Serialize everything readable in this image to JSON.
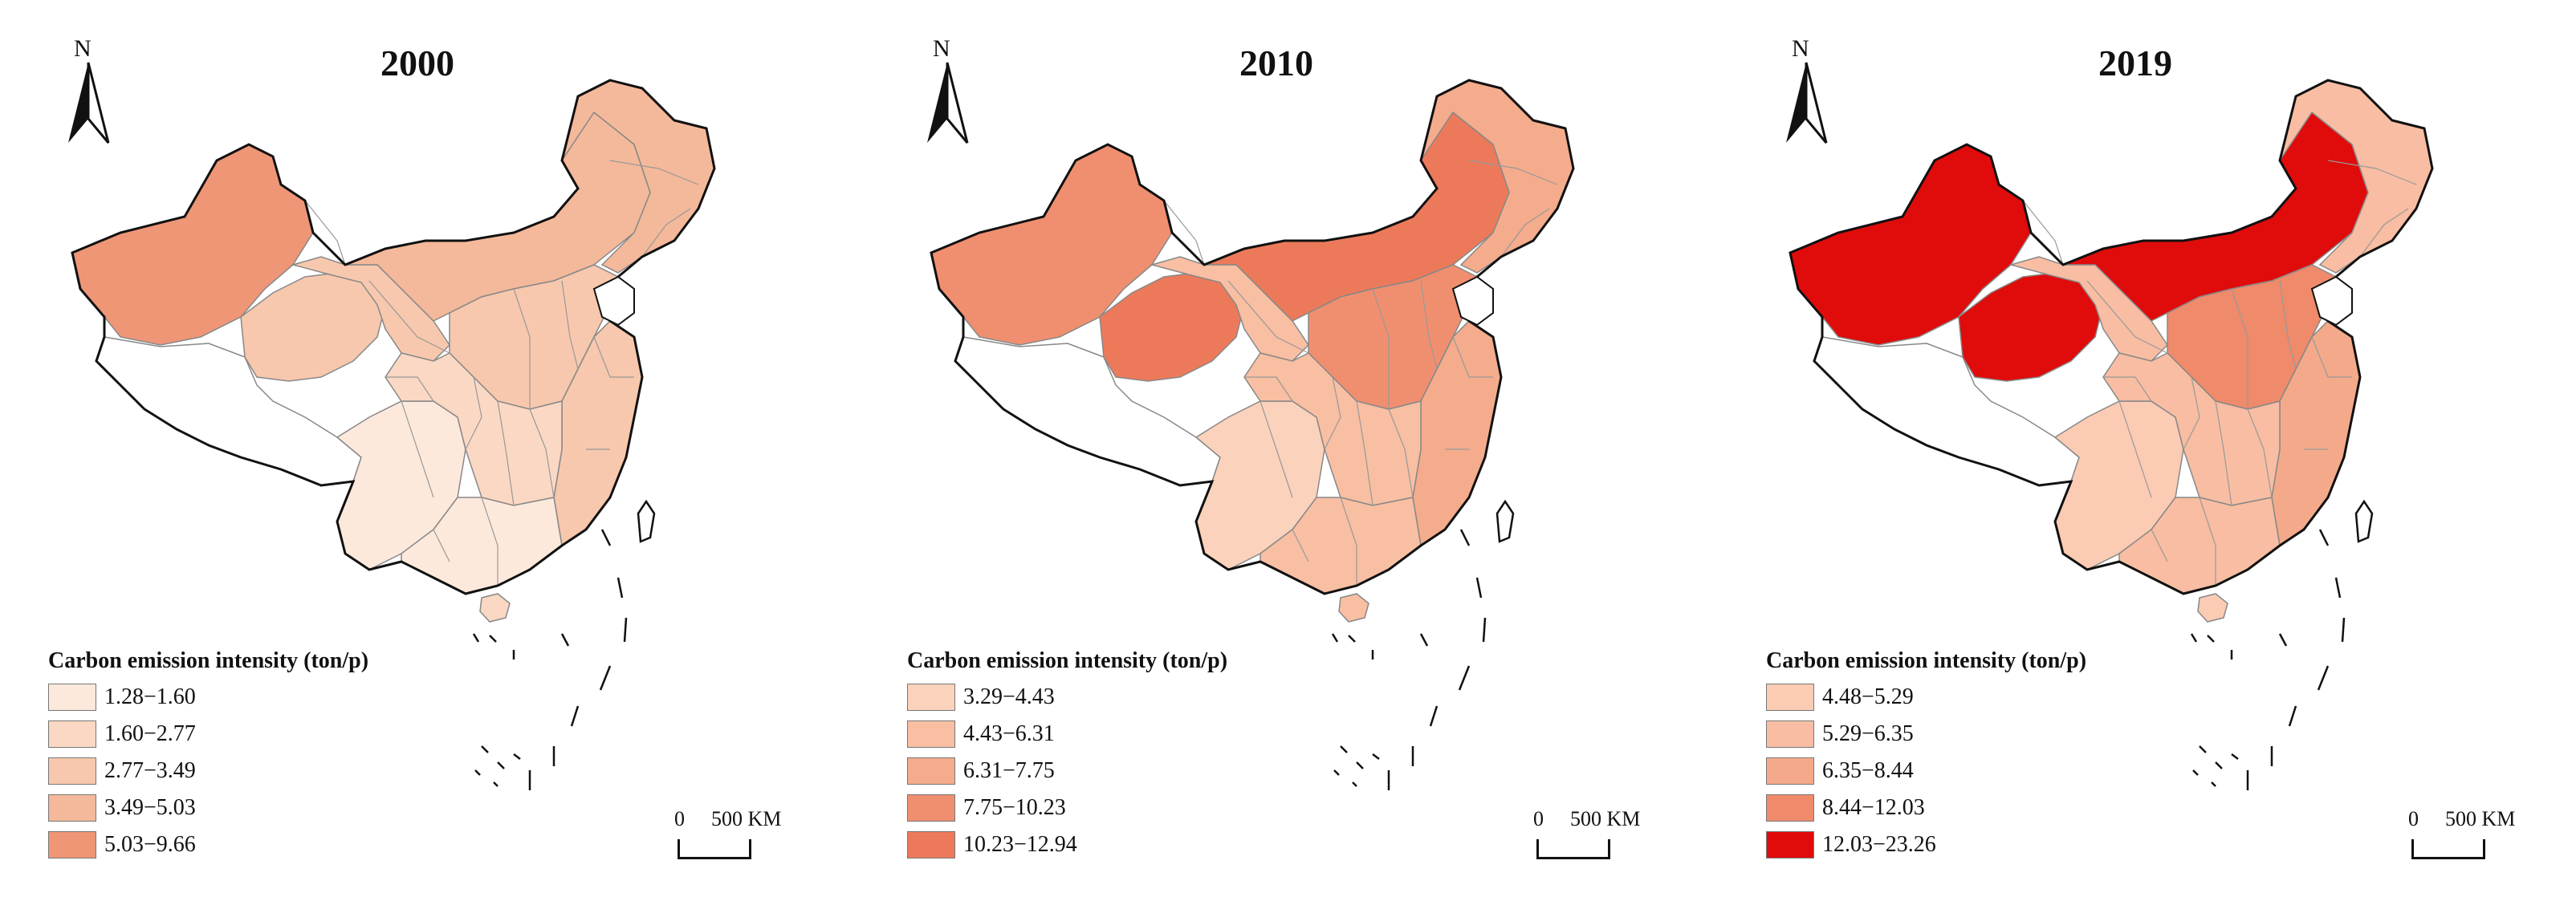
{
  "panels": [
    {
      "year": "2000",
      "legend": {
        "title": "Carbon emission intensity (ton/p)",
        "items": [
          {
            "label": "1.28−1.60",
            "color": "#fde9dc"
          },
          {
            "label": "1.60−2.77",
            "color": "#fbd8c3"
          },
          {
            "label": "2.77−3.49",
            "color": "#f7c8ad"
          },
          {
            "label": "3.49−5.03",
            "color": "#f4b99a"
          },
          {
            "label": "5.03−9.66",
            "color": "#ef9677"
          }
        ]
      },
      "region_colors": {
        "xinjiang": "#ef9677",
        "tibet": "#ffffff",
        "qinghai": "#f7c8ad",
        "gansu": "#f7c8ad",
        "inner_mongolia": "#f4b99a",
        "northeast": "#f4b99a",
        "north_china": "#f7c8ad",
        "east_coast": "#f7c8ad",
        "southwest": "#fde9dc",
        "central": "#fbd8c3",
        "south": "#fde9dc",
        "hainan": "#fbd8c3"
      },
      "scale": {
        "zero": "0",
        "unit": "500 KM"
      }
    },
    {
      "year": "2010",
      "legend": {
        "title": "Carbon emission intensity (ton/p)",
        "items": [
          {
            "label": "3.29−4.43",
            "color": "#fbd2bb"
          },
          {
            "label": "4.43−6.31",
            "color": "#f8bfa2"
          },
          {
            "label": "6.31−7.75",
            "color": "#f4ac8c"
          },
          {
            "label": "7.75−10.23",
            "color": "#f08f70"
          },
          {
            "label": "10.23−12.94",
            "color": "#ec7a5a"
          }
        ]
      },
      "region_colors": {
        "xinjiang": "#f08f70",
        "tibet": "#ffffff",
        "qinghai": "#ec7a5a",
        "gansu": "#f8bfa2",
        "inner_mongolia": "#ec7a5a",
        "northeast": "#f4ac8c",
        "north_china": "#f08f70",
        "east_coast": "#f4ac8c",
        "southwest": "#fbd2bb",
        "central": "#f8bfa2",
        "south": "#f8bfa2",
        "hainan": "#f8bfa2"
      },
      "scale": {
        "zero": "0",
        "unit": "500 KM"
      }
    },
    {
      "year": "2019",
      "legend": {
        "title": "Carbon emission intensity (ton/p)",
        "items": [
          {
            "label": "4.48−5.29",
            "color": "#fbcbb4"
          },
          {
            "label": "5.29−6.35",
            "color": "#f8bda2"
          },
          {
            "label": "6.35−8.44",
            "color": "#f4aa8a"
          },
          {
            "label": "8.44−12.03",
            "color": "#ef8a6a"
          },
          {
            "label": "12.03−23.26",
            "color": "#e00b0b"
          }
        ]
      },
      "region_colors": {
        "xinjiang": "#e00b0b",
        "tibet": "#ffffff",
        "qinghai": "#e00b0b",
        "gansu": "#f8bda2",
        "inner_mongolia": "#e00b0b",
        "northeast": "#f8bda2",
        "north_china": "#ef8a6a",
        "east_coast": "#f4aa8a",
        "southwest": "#fbcbb4",
        "central": "#f8bda2",
        "south": "#f8bda2",
        "hainan": "#fbcbb4"
      },
      "scale": {
        "zero": "0",
        "unit": "500 KM"
      }
    }
  ],
  "north_label": "N"
}
